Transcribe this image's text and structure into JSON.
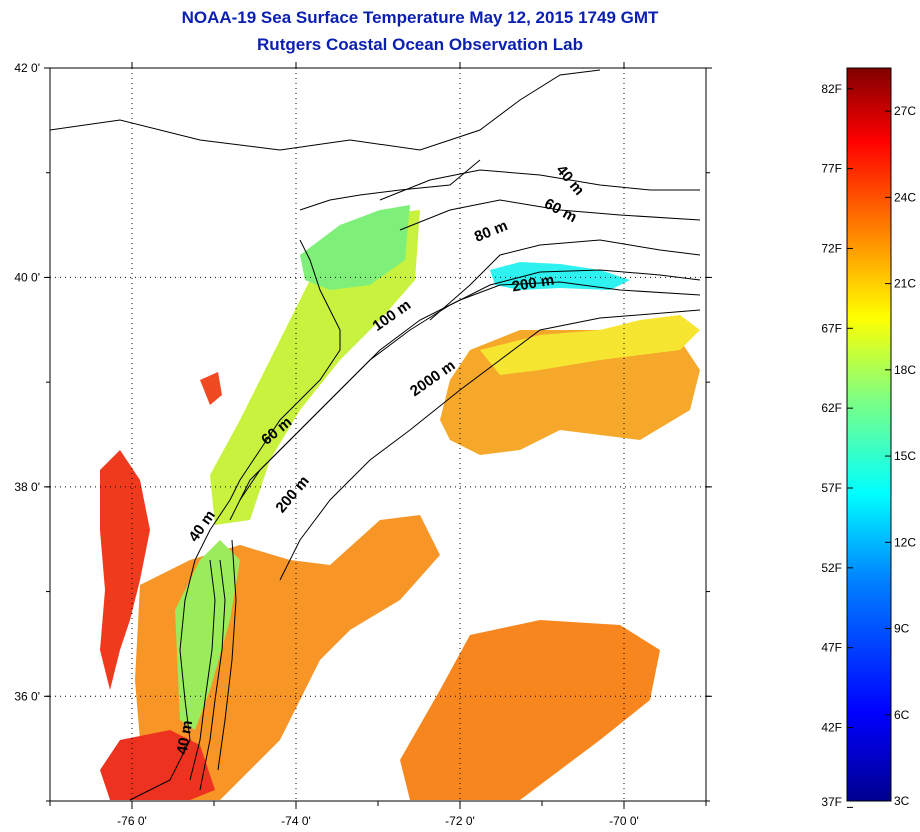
{
  "title": {
    "line1": "NOAA-19 Sea Surface Temperature May 12, 2015 1749 GMT",
    "line2": "Rutgers Coastal Ocean Observation Lab"
  },
  "map": {
    "lon_range": [
      -77.0,
      -69.0
    ],
    "lat_range": [
      35.0,
      42.0
    ],
    "lon_ticks": [
      {
        "value": -76,
        "label": "-76 0'"
      },
      {
        "value": -74,
        "label": "-74 0'"
      },
      {
        "value": -72,
        "label": "-72 0'"
      },
      {
        "value": -70,
        "label": "-70 0'"
      }
    ],
    "lat_ticks": [
      {
        "value": 42,
        "label": "42 0'"
      },
      {
        "value": 40,
        "label": "40 0'"
      },
      {
        "value": 38,
        "label": "38 0'"
      },
      {
        "value": 36,
        "label": "36 0'"
      }
    ],
    "grid": "dotted",
    "contour_labels": [
      {
        "text": "40 m",
        "lon": -70.7,
        "lat": 40.9,
        "rot": 50
      },
      {
        "text": "60 m",
        "lon": -70.8,
        "lat": 40.6,
        "rot": 28
      },
      {
        "text": "80 m",
        "lon": -71.6,
        "lat": 40.4,
        "rot": -22
      },
      {
        "text": "200 m",
        "lon": -71.1,
        "lat": 39.9,
        "rot": -10
      },
      {
        "text": "100 m",
        "lon": -72.8,
        "lat": 39.6,
        "rot": -35
      },
      {
        "text": "2000 m",
        "lon": -72.3,
        "lat": 39.0,
        "rot": -35
      },
      {
        "text": "60 m",
        "lon": -74.2,
        "lat": 38.5,
        "rot": -40
      },
      {
        "text": "200 m",
        "lon": -74.0,
        "lat": 37.9,
        "rot": -50
      },
      {
        "text": "40 m",
        "lon": -75.1,
        "lat": 37.6,
        "rot": -55
      },
      {
        "text": "40 m",
        "lon": -75.3,
        "lat": 35.6,
        "rot": -80
      }
    ]
  },
  "colorbar": {
    "fahrenheit": [
      "82F",
      "77F",
      "72F",
      "67F",
      "62F",
      "57F",
      "52F",
      "47F",
      "42F",
      "37F"
    ],
    "fahrenheit_values": [
      82,
      77,
      72,
      67,
      62,
      57,
      52,
      47,
      42,
      37
    ],
    "celsius": [
      "27C",
      "24C",
      "21C",
      "18C",
      "15C",
      "12C",
      "9C",
      "6C",
      "3C"
    ],
    "celsius_values": [
      27,
      24,
      21,
      18,
      15,
      12,
      9,
      6,
      3
    ],
    "min_c": 3,
    "max_c": 28.5,
    "colors": [
      "#00008f",
      "#0000ff",
      "#0080ff",
      "#00ffff",
      "#80ff80",
      "#ffff00",
      "#ff8000",
      "#ff0000",
      "#800000"
    ]
  }
}
